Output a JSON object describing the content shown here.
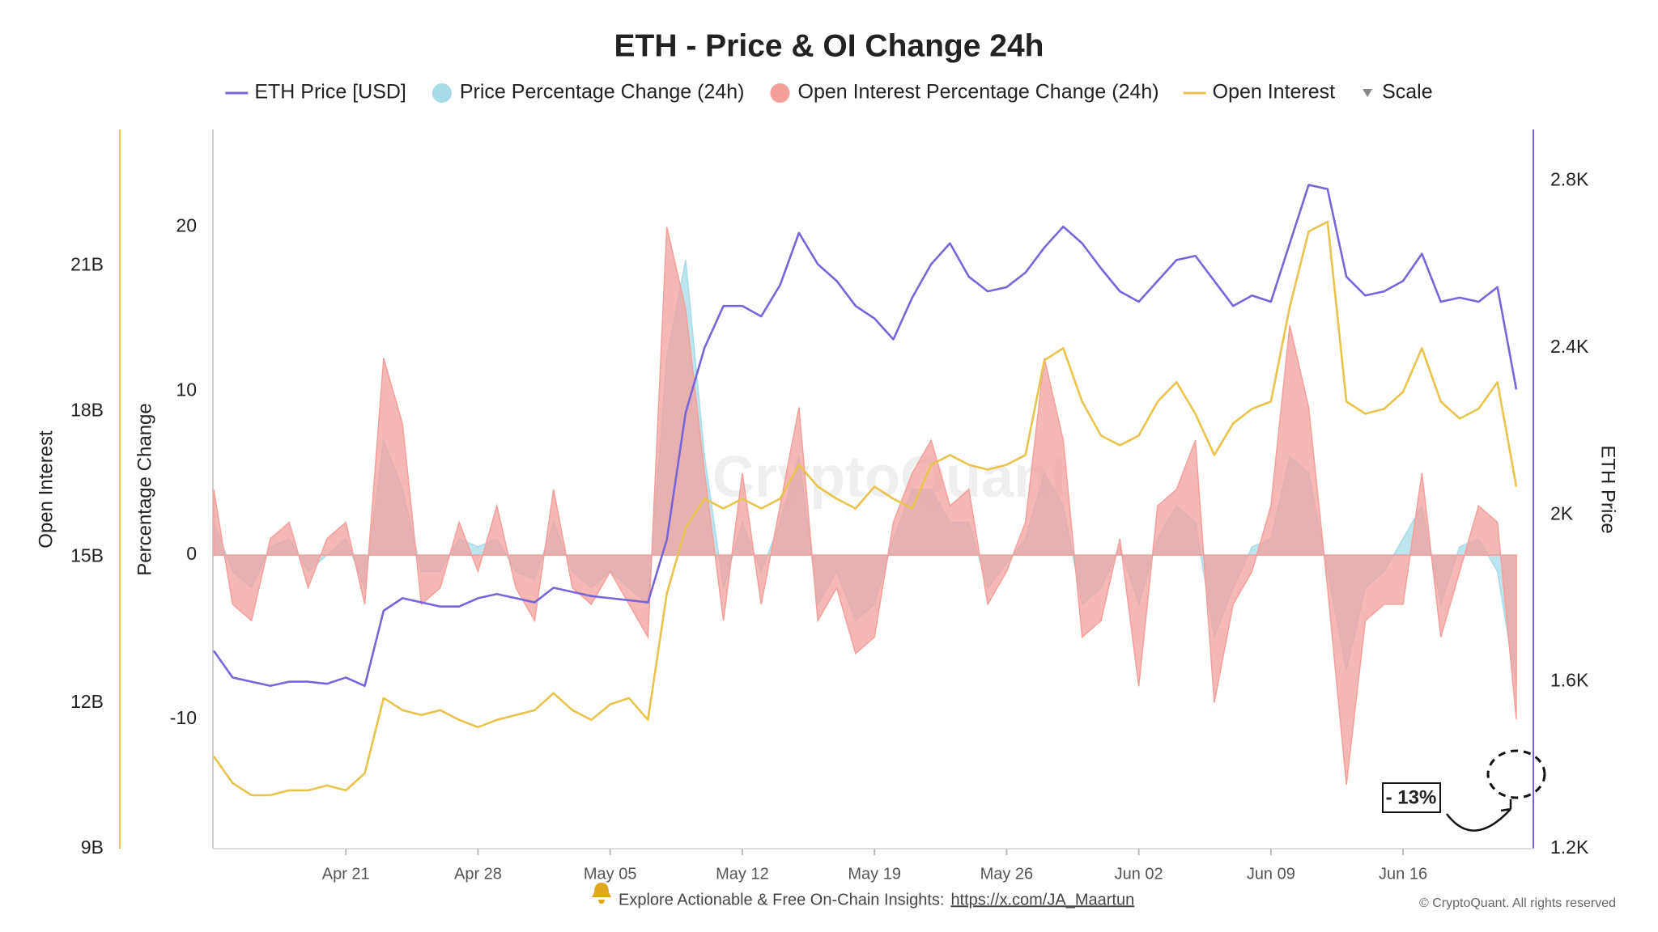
{
  "chart_data": {
    "type": "line",
    "title": "ETH - Price & OI Change 24h",
    "categories": [
      null,
      null,
      null,
      null,
      null,
      null,
      null,
      "Apr 21",
      null,
      null,
      null,
      null,
      null,
      null,
      "Apr 28",
      null,
      null,
      null,
      null,
      null,
      null,
      "May 05",
      null,
      null,
      null,
      null,
      null,
      null,
      "May 12",
      null,
      null,
      null,
      null,
      null,
      null,
      "May 19",
      null,
      null,
      null,
      null,
      null,
      null,
      "May 26",
      null,
      null,
      null,
      null,
      null,
      null,
      "Jun 02",
      null,
      null,
      null,
      null,
      null,
      null,
      "Jun 09",
      null,
      null,
      null,
      null,
      null,
      null,
      "Jun 16",
      null,
      null,
      null,
      null,
      null,
      null
    ],
    "series": [
      {
        "name": "ETH Price [USD]",
        "type": "line",
        "axis": "y2",
        "color": "#7866d8",
        "values": [
          1674,
          1610,
          1600,
          1590,
          1600,
          1600,
          1595,
          1610,
          1590,
          1770,
          1800,
          1790,
          1780,
          1780,
          1800,
          1810,
          1800,
          1790,
          1825,
          1815,
          1805,
          1800,
          1795,
          1790,
          1940,
          2245,
          2400,
          2500,
          2500,
          2475,
          2550,
          2675,
          2600,
          2560,
          2500,
          2470,
          2420,
          2520,
          2600,
          2650,
          2570,
          2535,
          2545,
          2580,
          2640,
          2690,
          2650,
          2590,
          2535,
          2510,
          2560,
          2610,
          2620,
          2560,
          2500,
          2525,
          2510,
          2650,
          2790,
          2780,
          2570,
          2525,
          2535,
          2560,
          2625,
          2510,
          2520,
          2510,
          2545,
          2300
        ]
      },
      {
        "name": "Price Percentage Change (24h)",
        "type": "area",
        "axis": "y",
        "color": "#a8dbe8",
        "values": [
          2,
          -1,
          -2,
          0.5,
          1,
          -1,
          0,
          1,
          -2,
          7,
          4,
          -1,
          -1,
          1,
          0.5,
          1,
          -1,
          -1.5,
          2,
          -1,
          -2,
          -1,
          -2,
          -3,
          12,
          18,
          6,
          -2,
          2,
          -1,
          2,
          6,
          -3,
          -1,
          -4,
          -3,
          1,
          4,
          4,
          2,
          2,
          -2,
          -0.5,
          1,
          5,
          3,
          -3,
          -2,
          0.5,
          -3,
          1,
          3,
          2,
          -5,
          -2,
          0.5,
          1,
          6,
          5,
          -1,
          -7,
          -2,
          -1,
          1,
          3,
          -3,
          0.5,
          1,
          -1,
          -8
        ]
      },
      {
        "name": "Open Interest Percentage Change (24h)",
        "type": "area",
        "axis": "y",
        "color": "#f3a09b",
        "values": [
          4,
          -3,
          -4,
          1,
          2,
          -2,
          1,
          2,
          -3,
          12,
          8,
          -3,
          -2,
          2,
          -1,
          3,
          -2,
          -4,
          4,
          -2,
          -3,
          -1,
          -3,
          -5,
          20,
          15,
          5,
          -4,
          5,
          -3,
          3,
          9,
          -4,
          -2,
          -6,
          -5,
          2,
          5,
          7,
          3,
          4,
          -3,
          -1,
          2,
          12,
          7,
          -5,
          -4,
          1,
          -8,
          3,
          4,
          7,
          -9,
          -3,
          -1,
          3,
          14,
          9,
          -2,
          -14,
          -4,
          -3,
          -3,
          5,
          -5,
          -1,
          3,
          2,
          -10
        ]
      },
      {
        "name": "Open Interest",
        "type": "line",
        "axis": "y3",
        "color": "#e8c44c",
        "values": [
          10.9,
          10.35,
          10.1,
          10.1,
          10.2,
          10.2,
          10.3,
          10.2,
          10.55,
          12.1,
          11.85,
          11.75,
          11.85,
          11.65,
          11.5,
          11.65,
          11.75,
          11.85,
          12.2,
          11.85,
          11.65,
          11.97,
          12.1,
          11.65,
          14.25,
          15.6,
          16.2,
          16.0,
          16.2,
          16.0,
          16.2,
          16.9,
          16.45,
          16.2,
          16.0,
          16.45,
          16.2,
          16.0,
          16.9,
          17.1,
          16.9,
          16.8,
          16.9,
          17.1,
          19.05,
          19.3,
          18.2,
          17.5,
          17.3,
          17.5,
          18.2,
          18.6,
          17.95,
          17.1,
          17.75,
          18.05,
          18.2,
          20.15,
          21.7,
          21.9,
          18.2,
          17.95,
          18.05,
          18.4,
          19.3,
          18.2,
          17.85,
          18.05,
          18.6,
          16.45
        ]
      }
    ],
    "ylim": [
      -17.9,
      25.8
    ],
    "yticks": [
      -10,
      0,
      10,
      20
    ],
    "y2lim": [
      1200,
      2917
    ],
    "y2ticks": [
      {
        "value": 1200,
        "label": "1.2K"
      },
      {
        "value": 1600,
        "label": "1.6K"
      },
      {
        "value": 2000,
        "label": "2K"
      },
      {
        "value": 2400,
        "label": "2.4K"
      },
      {
        "value": 2800,
        "label": "2.8K"
      }
    ],
    "y3lim": [
      9,
      23.75
    ],
    "y3ticks": [
      {
        "value": 9,
        "label": "9B"
      },
      {
        "value": 12,
        "label": "12B"
      },
      {
        "value": 15,
        "label": "15B"
      },
      {
        "value": 18,
        "label": "18B"
      },
      {
        "value": 21,
        "label": "21B"
      }
    ],
    "ylabel": "Percentage Change",
    "y2label": "ETH Price",
    "y3label": "Open Interest",
    "grid": false,
    "legend": "top",
    "scale_control": "Scale",
    "annotations": [
      {
        "text": "- 13%"
      }
    ],
    "watermark": "CryptoQuant",
    "footer": {
      "text": "Explore Actionable & Free On-Chain Insights:",
      "link": "https://x.com/JA_Maartun"
    },
    "copyright": "© CryptoQuant. All rights reserved"
  }
}
